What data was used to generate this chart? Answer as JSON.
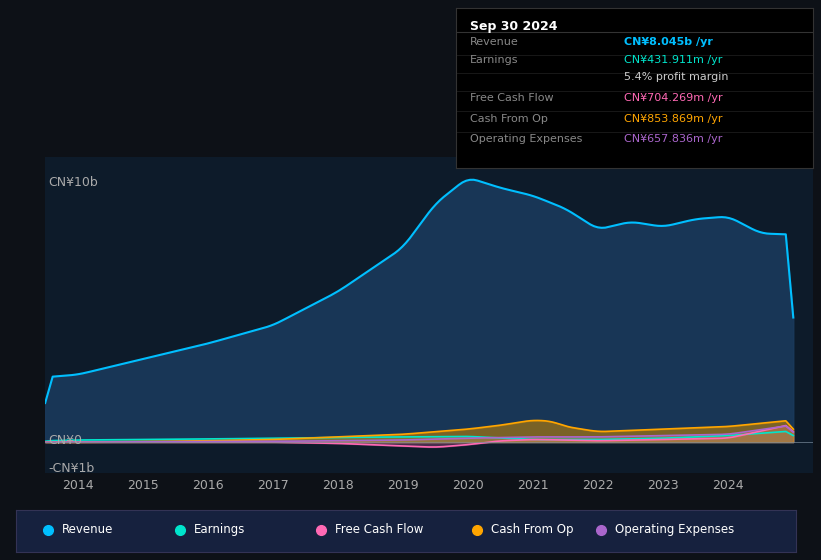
{
  "bg_color": "#0d1117",
  "plot_bg_color": "#0d1b2a",
  "title_box": {
    "date": "Sep 30 2024",
    "rows": [
      {
        "label": "Revenue",
        "value": "CN¥8.045b /yr",
        "value_color": "#00bfff"
      },
      {
        "label": "Earnings",
        "value": "CN¥431.911m /yr",
        "value_color": "#00e5cc"
      },
      {
        "label": "",
        "value": "5.4% profit margin",
        "value_color": "#cccccc"
      },
      {
        "label": "Free Cash Flow",
        "value": "CN¥704.269m /yr",
        "value_color": "#ff69b4"
      },
      {
        "label": "Cash From Op",
        "value": "CN¥853.869m /yr",
        "value_color": "#ffa500"
      },
      {
        "label": "Operating Expenses",
        "value": "CN¥657.836m /yr",
        "value_color": "#aa66cc"
      }
    ]
  },
  "y_label_top": "CN¥10b",
  "y_label_zero": "CN¥0",
  "y_label_bottom": "-CN¥1b",
  "x_ticks": [
    2014,
    2015,
    2016,
    2017,
    2018,
    2019,
    2020,
    2021,
    2022,
    2023,
    2024
  ],
  "ylim": [
    -1.2,
    11.0
  ],
  "series": {
    "revenue": {
      "color": "#00bfff",
      "fill_color": "#1a3a5c",
      "label": "Revenue"
    },
    "earnings": {
      "color": "#00e5cc",
      "fill_color": "#00e5cc",
      "label": "Earnings"
    },
    "free_cash_flow": {
      "color": "#ff69b4",
      "fill_color": "#ff69b4",
      "label": "Free Cash Flow"
    },
    "cash_from_op": {
      "color": "#ffa500",
      "fill_color": "#cc8800",
      "label": "Cash From Op"
    },
    "operating_expenses": {
      "color": "#aa66cc",
      "fill_color": "#aa66cc",
      "label": "Operating Expenses"
    }
  },
  "legend_bg": "#16213e",
  "legend_border": "#333355"
}
